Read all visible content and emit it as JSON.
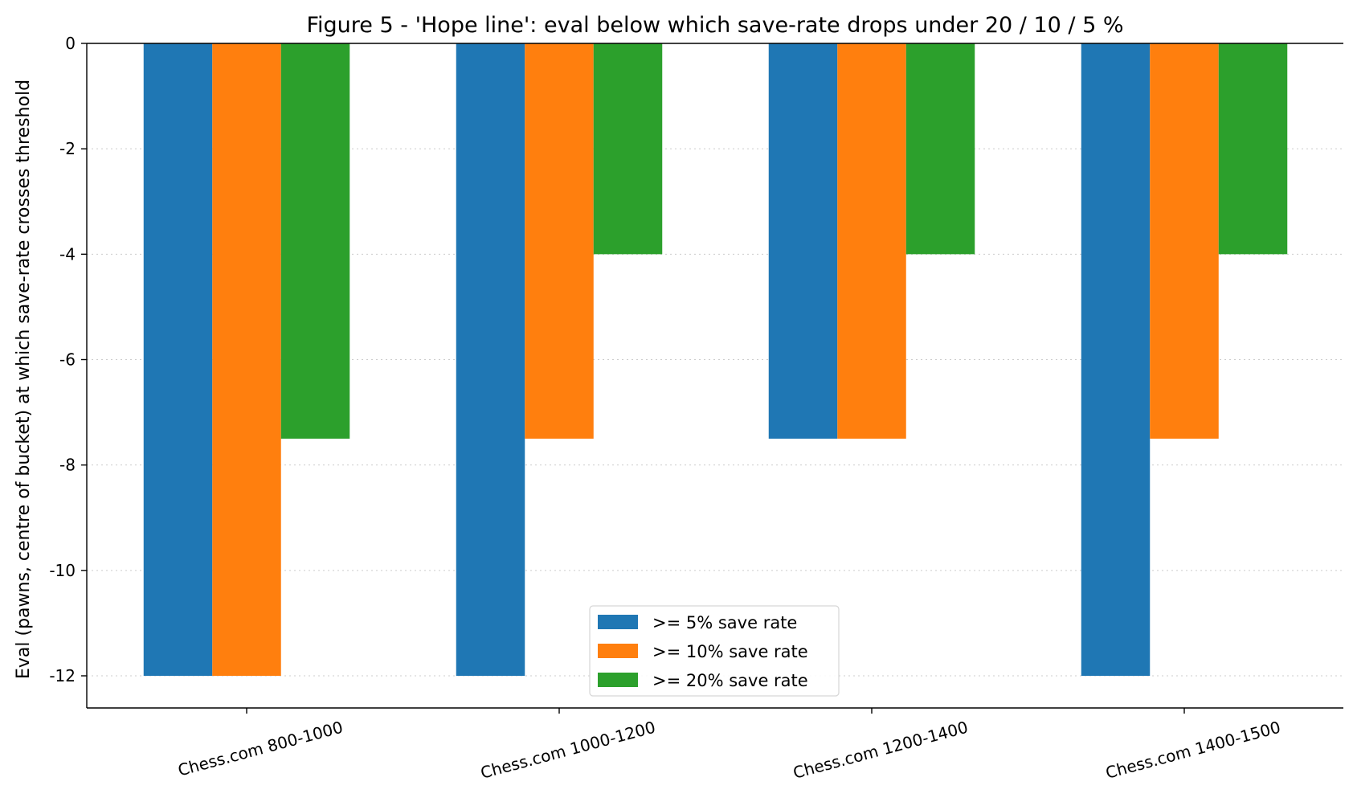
{
  "chart_data": {
    "type": "bar",
    "title": "Figure 5 - 'Hope line': eval below which save-rate drops under 20 / 10 / 5 %",
    "xlabel": "",
    "ylabel": "Eval (pawns, centre of bucket) at which save-rate crosses threshold",
    "categories": [
      "Chess.com 800-1000",
      "Chess.com 1000-1200",
      "Chess.com 1200-1400",
      "Chess.com 1400-1500"
    ],
    "series": [
      {
        "name": ">= 5%  save rate",
        "color": "#1f77b4",
        "values": [
          -12,
          -12,
          -7.5,
          -12
        ]
      },
      {
        "name": ">= 10%  save rate",
        "color": "#ff7f0e",
        "values": [
          -12,
          -7.5,
          -7.5,
          -7.5
        ]
      },
      {
        "name": ">= 20%  save rate",
        "color": "#2ca02c",
        "values": [
          -7.5,
          -4,
          -4,
          -4
        ]
      }
    ],
    "ylim": [
      -12.6,
      0
    ],
    "yticks": [
      0,
      -2,
      -4,
      -6,
      -8,
      -10,
      -12
    ],
    "grid": "y dotted",
    "legend_position": "bottom-center"
  }
}
